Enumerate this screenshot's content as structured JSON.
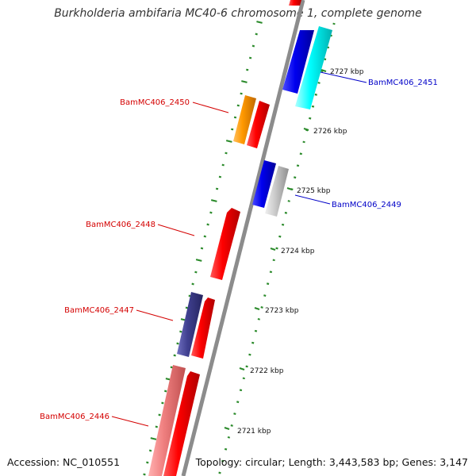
{
  "title": "Burkholderia ambifaria MC40-6 chromosome 1, complete genome",
  "footer": {
    "accession": "Accession: NC_010551",
    "topology": "Topology: circular; Length: 3,443,583 bp; Genes: 3,147"
  },
  "colors": {
    "backbone": "#8c8c8c",
    "tick": "#2a8a2a",
    "label_red": "#d40000",
    "label_blue": "#0000c8",
    "gene_red": "#ff0000",
    "gene_blue": "#0000ee",
    "gene_cyan": "#00ffff",
    "gene_orange": "#ff9900",
    "gene_grey": "#cccccc",
    "gene_navy": "#404090",
    "gene_pink": "#f08080"
  },
  "scale_labels": [
    "2727 kbp",
    "2726 kbp",
    "2725 kbp",
    "2724 kbp",
    "2723 kbp",
    "2722 kbp",
    "2721 kbp"
  ],
  "gene_labels": [
    {
      "text": "BamMC406_2451",
      "side": "right",
      "color": "label_blue"
    },
    {
      "text": "BamMC406_2450",
      "side": "left",
      "color": "label_red"
    },
    {
      "text": "BamMC406_2449",
      "side": "right",
      "color": "label_blue"
    },
    {
      "text": "BamMC406_2448",
      "side": "left",
      "color": "label_red"
    },
    {
      "text": "BamMC406_2447",
      "side": "left",
      "color": "label_red"
    },
    {
      "text": "BamMC406_2446",
      "side": "left",
      "color": "label_red"
    }
  ]
}
